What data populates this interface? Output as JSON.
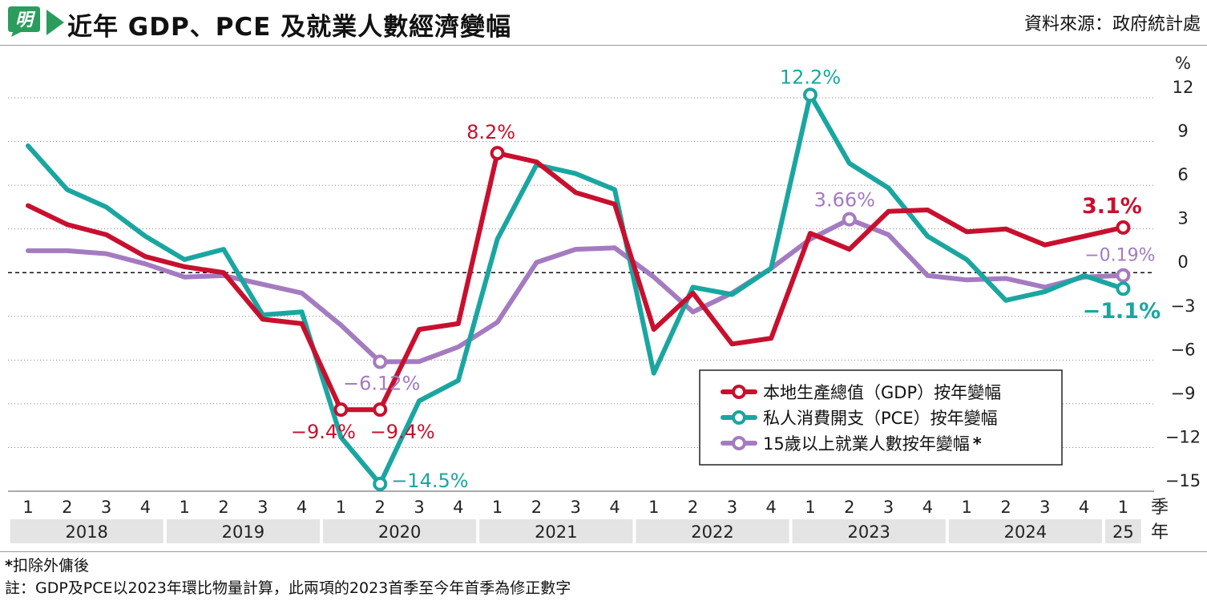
{
  "header": {
    "title": "近年 GDP、PCE 及就業人數經濟變幅",
    "source": "資料來源：政府統計處",
    "logo_text": "明"
  },
  "axis": {
    "unit": "%",
    "ylim": [
      -15,
      12
    ],
    "yticks": [
      12,
      9,
      6,
      3,
      0,
      -3,
      -6,
      -9,
      -12,
      -15
    ],
    "quarter_row_label": "季",
    "year_row_label": "年"
  },
  "chart_data": {
    "type": "line",
    "categories": [
      "2018Q1",
      "2018Q2",
      "2018Q3",
      "2018Q4",
      "2019Q1",
      "2019Q2",
      "2019Q3",
      "2019Q4",
      "2020Q1",
      "2020Q2",
      "2020Q3",
      "2020Q4",
      "2021Q1",
      "2021Q2",
      "2021Q3",
      "2021Q4",
      "2022Q1",
      "2022Q2",
      "2022Q3",
      "2022Q4",
      "2023Q1",
      "2023Q2",
      "2023Q3",
      "2023Q4",
      "2024Q1",
      "2024Q2",
      "2024Q3",
      "2024Q4",
      "2025Q1"
    ],
    "quarter_labels": [
      "1",
      "2",
      "3",
      "4",
      "1",
      "2",
      "3",
      "4",
      "1",
      "2",
      "3",
      "4",
      "1",
      "2",
      "3",
      "4",
      "1",
      "2",
      "3",
      "4",
      "1",
      "2",
      "3",
      "4",
      "1",
      "2",
      "3",
      "4",
      "1"
    ],
    "years": [
      {
        "label": "2018",
        "start": 0,
        "count": 4
      },
      {
        "label": "2019",
        "start": 4,
        "count": 4
      },
      {
        "label": "2020",
        "start": 8,
        "count": 4
      },
      {
        "label": "2021",
        "start": 12,
        "count": 4
      },
      {
        "label": "2022",
        "start": 16,
        "count": 4
      },
      {
        "label": "2023",
        "start": 20,
        "count": 4
      },
      {
        "label": "2024",
        "start": 24,
        "count": 4
      },
      {
        "label": "25",
        "start": 28,
        "count": 1
      }
    ],
    "series": [
      {
        "name": "本地生產總值（GDP）按年變幅",
        "color": "#c8102e",
        "values": [
          4.6,
          3.3,
          2.6,
          1.1,
          0.4,
          0.0,
          -3.2,
          -3.5,
          -9.4,
          -9.4,
          -3.9,
          -3.5,
          8.2,
          7.6,
          5.5,
          4.7,
          -3.9,
          -1.4,
          -4.9,
          -4.5,
          2.7,
          1.6,
          4.2,
          4.3,
          2.8,
          3.0,
          1.9,
          2.5,
          3.1
        ],
        "labels": [
          {
            "index": 8,
            "text": "−9.4%"
          },
          {
            "index": 9,
            "text": "−9.4%"
          },
          {
            "index": 12,
            "text": "8.2%"
          },
          {
            "index": 28,
            "text": "3.1%"
          }
        ]
      },
      {
        "name": "私人消費開支（PCE）按年變幅",
        "color": "#1aa6a0",
        "values": [
          8.7,
          5.7,
          4.5,
          2.5,
          0.9,
          1.6,
          -2.9,
          -2.7,
          -11.3,
          -14.5,
          -8.8,
          -7.4,
          2.3,
          7.4,
          6.8,
          5.7,
          -6.9,
          -1.0,
          -1.5,
          0.3,
          12.2,
          7.5,
          5.8,
          2.5,
          0.9,
          -1.9,
          -1.3,
          -0.2,
          -1.1
        ],
        "labels": [
          {
            "index": 9,
            "text": "−14.5%"
          },
          {
            "index": 20,
            "text": "12.2%"
          },
          {
            "index": 28,
            "text": "−1.1%"
          }
        ]
      },
      {
        "name": "15歲以上就業人數按年變幅",
        "name_suffix": "*",
        "color": "#a47bc0",
        "values": [
          1.5,
          1.5,
          1.3,
          0.6,
          -0.3,
          -0.2,
          -0.8,
          -1.4,
          -3.6,
          -6.12,
          -6.1,
          -5.1,
          -3.4,
          0.7,
          1.6,
          1.7,
          -0.3,
          -2.7,
          -1.4,
          0.3,
          2.3,
          3.66,
          2.6,
          -0.2,
          -0.5,
          -0.4,
          -1.0,
          -0.3,
          -0.19
        ],
        "labels": [
          {
            "index": 9,
            "text": "−6.12%"
          },
          {
            "index": 21,
            "text": "3.66%"
          },
          {
            "index": 28,
            "text": "−0.19%"
          }
        ]
      }
    ]
  },
  "notes": {
    "star": "*",
    "star_text": "扣除外傭後",
    "note": "註：GDP及PCE以2023年環比物量計算，此兩項的2023首季至今年首季為修正數字"
  }
}
